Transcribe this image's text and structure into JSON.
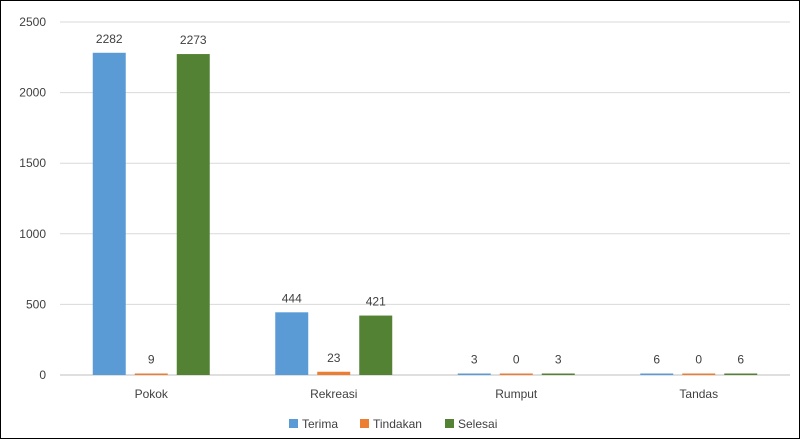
{
  "chart_data": {
    "type": "bar",
    "categories": [
      "Pokok",
      "Rekreasi",
      "Rumput",
      "Tandas"
    ],
    "series": [
      {
        "name": "Terima",
        "values": [
          2282,
          444,
          3,
          6
        ],
        "color": "#5B9BD5"
      },
      {
        "name": "Tindakan",
        "values": [
          9,
          23,
          0,
          0
        ],
        "color": "#ED7D31"
      },
      {
        "name": "Selesai",
        "values": [
          2273,
          421,
          3,
          6
        ],
        "color": "#548235"
      }
    ],
    "yticks": [
      0,
      500,
      1000,
      1500,
      2000,
      2500
    ],
    "ylim": [
      0,
      2500
    ],
    "grid": true,
    "legend_position": "bottom",
    "data_labels": true
  }
}
